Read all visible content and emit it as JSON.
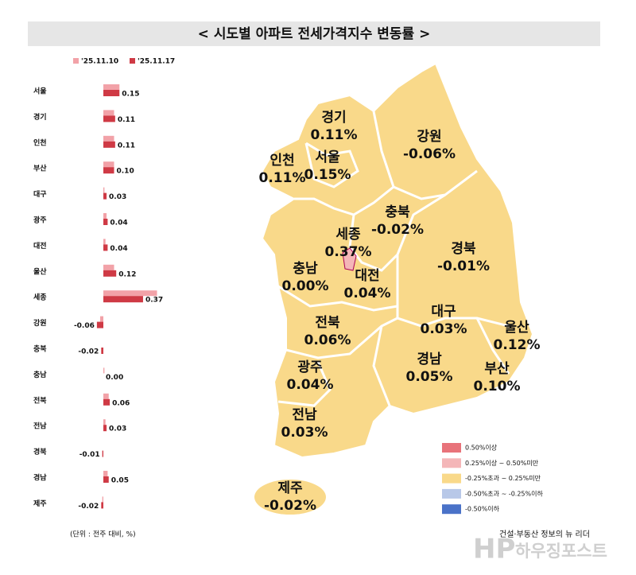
{
  "chart_data": {
    "type": "hbar",
    "title": "< 시도별 아파트 전세가격지수 변동률 >",
    "unit_note": "(단위 : 전주 대비, %)",
    "categories": [
      "서울",
      "경기",
      "인천",
      "부산",
      "대구",
      "광주",
      "대전",
      "울산",
      "세종",
      "강원",
      "충북",
      "충남",
      "전북",
      "전남",
      "경북",
      "경남",
      "제주"
    ],
    "series": [
      {
        "name": "'25.11.10",
        "color": "#f2a2a8",
        "values": [
          0.15,
          0.1,
          0.1,
          0.1,
          0.01,
          0.03,
          0.02,
          0.1,
          0.5,
          -0.03,
          0.0,
          0.01,
          0.05,
          0.02,
          0.0,
          0.04,
          -0.01
        ]
      },
      {
        "name": "'25.11.17",
        "color": "#cf3a45",
        "values": [
          0.15,
          0.11,
          0.11,
          0.1,
          0.03,
          0.04,
          0.04,
          0.12,
          0.37,
          -0.06,
          -0.02,
          0.0,
          0.06,
          0.03,
          -0.01,
          0.05,
          -0.02
        ],
        "value_labels": [
          "0.15",
          "0.11",
          "0.11",
          "0.10",
          "0.03",
          "0.04",
          "0.04",
          "0.12",
          "0.37",
          "-0.06",
          "-0.02",
          "0.00",
          "0.06",
          "0.03",
          "-0.01",
          "0.05",
          "-0.02"
        ]
      }
    ],
    "xlim": [
      -0.1,
      0.5
    ]
  },
  "map": {
    "regions": [
      {
        "name": "경기",
        "label": "0.11%"
      },
      {
        "name": "강원",
        "label": "-0.06%"
      },
      {
        "name": "인천",
        "label": "0.11%"
      },
      {
        "name": "서울",
        "label": "0.15%"
      },
      {
        "name": "충북",
        "label": "-0.02%"
      },
      {
        "name": "세종",
        "label": "0.37%"
      },
      {
        "name": "경북",
        "label": "-0.01%"
      },
      {
        "name": "충남",
        "label": "0.00%"
      },
      {
        "name": "대전",
        "label": "0.04%"
      },
      {
        "name": "대구",
        "label": "0.03%"
      },
      {
        "name": "전북",
        "label": "0.06%"
      },
      {
        "name": "울산",
        "label": "0.12%"
      },
      {
        "name": "광주",
        "label": "0.04%"
      },
      {
        "name": "경남",
        "label": "0.05%"
      },
      {
        "name": "부산",
        "label": "0.10%"
      },
      {
        "name": "전남",
        "label": "0.03%"
      },
      {
        "name": "제주",
        "label": "-0.02%"
      }
    ],
    "legend": [
      {
        "label": "0.50%이상",
        "color": "#e8737a"
      },
      {
        "label": "0.25%이상 ~ 0.50%미만",
        "color": "#f4b6b8"
      },
      {
        "label": "-0.25%초과 ~ 0.25%미만",
        "color": "#f9d98a"
      },
      {
        "label": "-0.50%초과 ~ -0.25%이하",
        "color": "#b8c8e8"
      },
      {
        "label": "-0.50%이하",
        "color": "#4a72c8"
      }
    ]
  },
  "logo": {
    "mark": "HP",
    "tagline": "건설·부동산 정보의 뉴 리더",
    "name": "하우징포스트"
  }
}
